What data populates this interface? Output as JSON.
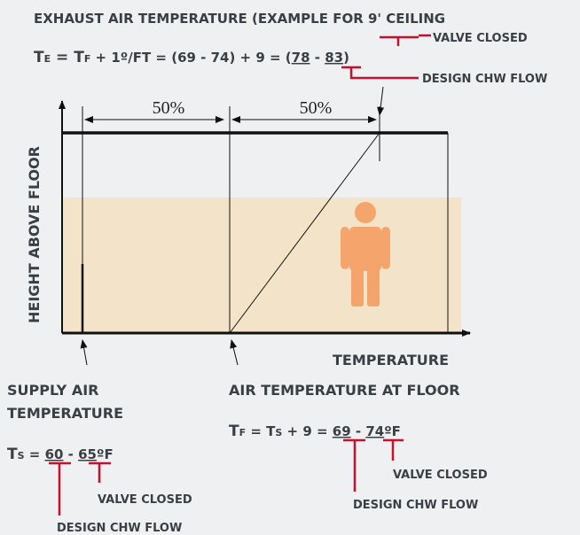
{
  "exhaust": {
    "title": "EXHAUST AIR TEMPERATURE (EXAMPLE FOR 9' CEILING",
    "formula": [
      "T",
      "E",
      " = T",
      "F",
      " + 1º/FT = (69 - 74) + 9 = (",
      "78",
      " - ",
      "83",
      ")"
    ],
    "valve_closed": "VALVE CLOSED",
    "design_flow": "DESIGN CHW FLOW"
  },
  "dimensions": [
    "50%",
    "50%"
  ],
  "axes": {
    "y": "HEIGHT ABOVE FLOOR",
    "x": "TEMPERATURE"
  },
  "supply": {
    "title": [
      "SUPPLY AIR",
      "TEMPERATURE"
    ],
    "formula": [
      "T",
      "S",
      " = ",
      "60",
      " - ",
      "65",
      "ºF"
    ],
    "valve_closed": "VALVE CLOSED",
    "design_flow": "DESIGN CHW FLOW"
  },
  "floor": {
    "title": "AIR TEMPERATURE AT FLOOR",
    "formula": [
      "T",
      "F",
      " = T",
      "S",
      " + 9 = ",
      "69",
      " - ",
      "74",
      "ºF"
    ],
    "valve_closed": "VALVE CLOSED",
    "design_flow": "DESIGN CHW FLOW"
  }
}
